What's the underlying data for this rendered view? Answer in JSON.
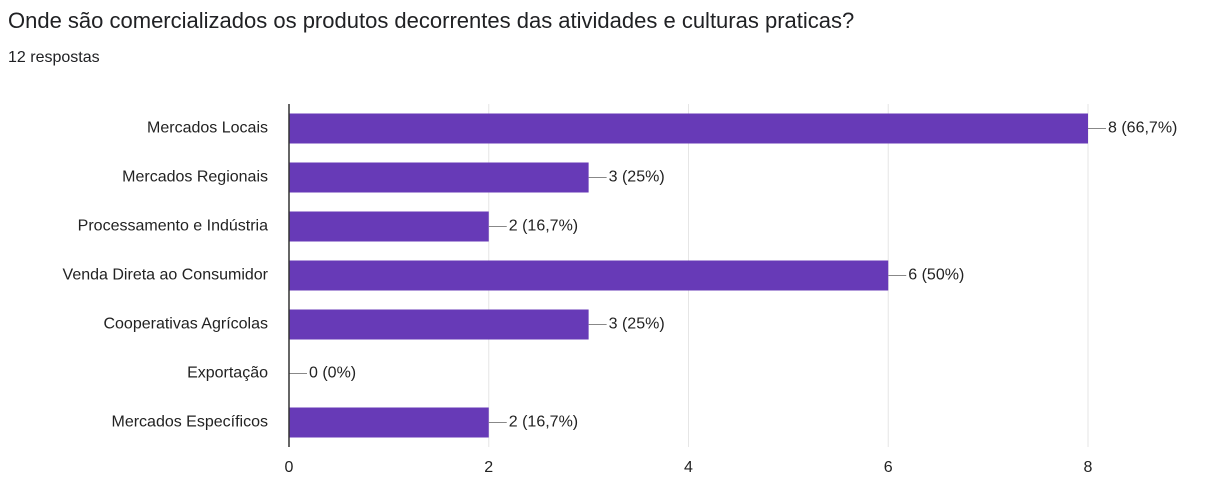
{
  "chart_data": {
    "type": "bar",
    "orientation": "horizontal",
    "title": "Onde são comercializados os produtos decorrentes das atividades e culturas praticas?",
    "subtitle": "12 respostas",
    "categories": [
      "Mercados Locais",
      "Mercados Regionais",
      "Processamento e Indústria",
      "Venda Direta ao Consumidor",
      "Cooperativas Agrícolas",
      "Exportação",
      "Mercados Específicos"
    ],
    "values": [
      8,
      3,
      2,
      6,
      3,
      0,
      2
    ],
    "value_labels": [
      "8 (66,7%)",
      "3 (25%)",
      "2 (16,7%)",
      "6 (50%)",
      "3 (25%)",
      "0 (0%)",
      "2 (16,7%)"
    ],
    "color": "#673ab7",
    "xlim": [
      0,
      8
    ],
    "xticks": [
      0,
      2,
      4,
      6,
      8
    ],
    "grid": true
  }
}
